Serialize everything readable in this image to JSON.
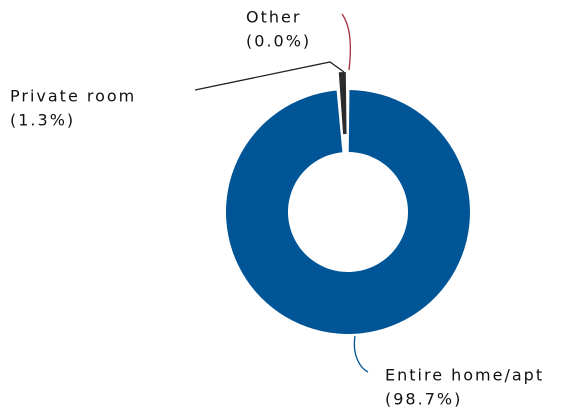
{
  "chart_data": {
    "type": "donut",
    "categories": [
      "Entire home/apt",
      "Private room",
      "Other"
    ],
    "values": [
      98.7,
      1.3,
      0.0
    ],
    "value_labels": [
      "(98.7%)",
      "(1.3%)",
      "(0.0%)"
    ],
    "colors": [
      "#005596",
      "#2b2b2b",
      "#a4343a"
    ]
  }
}
